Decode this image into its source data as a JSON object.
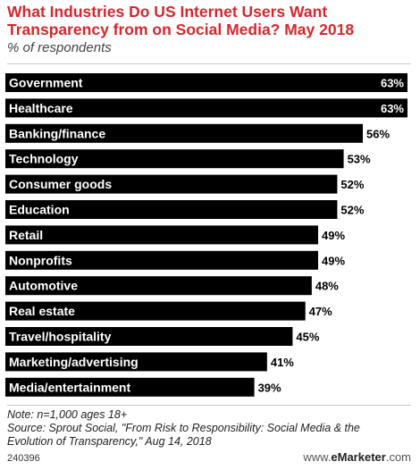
{
  "title": "What Industries Do US Internet Users Want Transparency from on Social Media? May 2018",
  "subtitle": "% of respondents",
  "note": "Note: n=1,000 ages 18+",
  "source": "Source: Sprout Social, \"From Risk to Responsibility: Social Media & the Evolution of Transparency,\" Aug 14, 2018",
  "footer": {
    "id": "240396",
    "brand_prefix": "www.",
    "brand_name": "eMarketer",
    "brand_suffix": ".com"
  },
  "colors": {
    "title": "#d7262d",
    "bar": "#000000"
  },
  "chart_data": {
    "type": "bar",
    "orientation": "horizontal",
    "categories": [
      "Government",
      "Healthcare",
      "Banking/finance",
      "Technology",
      "Consumer goods",
      "Education",
      "Retail",
      "Nonprofits",
      "Automotive",
      "Real estate",
      "Travel/hospitality",
      "Marketing/advertising",
      "Media/entertainment"
    ],
    "values": [
      63,
      63,
      56,
      53,
      52,
      52,
      49,
      49,
      48,
      47,
      45,
      41,
      39
    ],
    "value_labels": [
      "63%",
      "63%",
      "56%",
      "53%",
      "52%",
      "52%",
      "49%",
      "49%",
      "48%",
      "47%",
      "45%",
      "41%",
      "39%"
    ],
    "xlim": [
      0,
      63
    ],
    "grid": false,
    "legend": "none"
  }
}
